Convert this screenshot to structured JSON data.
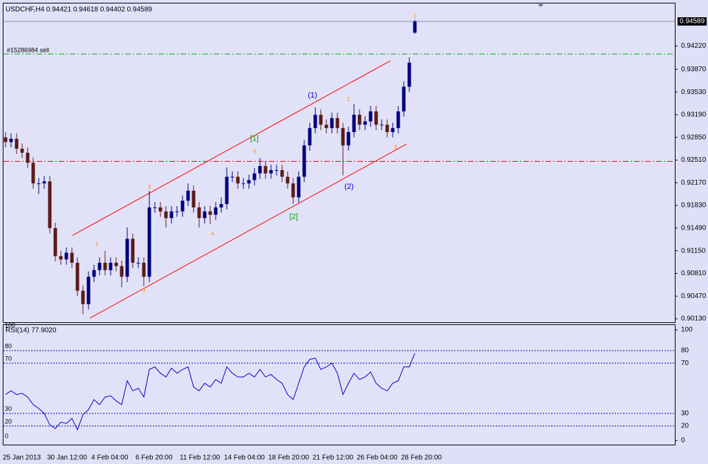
{
  "chart_data": [
    {
      "type": "candlestick",
      "title": "USDCHF,H4  0.94421 0.94618 0.94402 0.94589",
      "categories": [
        "25 Jan 2013",
        null,
        null,
        null,
        null,
        null,
        null,
        null,
        "30 Jan 12:00",
        null,
        null,
        null,
        null,
        null,
        null,
        null,
        "4 Feb 04:00",
        null,
        null,
        null,
        null,
        null,
        null,
        null,
        "6 Feb 20:00",
        null,
        null,
        null,
        null,
        null,
        null,
        null,
        "11 Feb 12:00",
        null,
        null,
        null,
        null,
        null,
        null,
        null,
        "14 Feb 04:00",
        null,
        null,
        null,
        null,
        null,
        null,
        null,
        "18 Feb 20:00",
        null,
        null,
        null,
        null,
        null,
        null,
        null,
        "21 Feb 12:00",
        null,
        null,
        null,
        null,
        null,
        null,
        null,
        "26 Feb 04:00",
        null,
        null,
        null,
        null,
        null,
        null,
        null,
        "28 Feb 20:00",
        null,
        null
      ],
      "open": [
        0.9285,
        0.9278,
        0.9283,
        0.9268,
        0.9262,
        0.9247,
        0.9216,
        0.9216,
        0.9219,
        0.9149,
        0.9107,
        0.9102,
        0.9112,
        0.9097,
        0.9055,
        0.9035,
        0.9076,
        0.9086,
        0.9097,
        0.9086,
        0.9097,
        0.9092,
        0.9076,
        0.9133,
        0.9097,
        0.9097,
        0.9076,
        0.918,
        0.918,
        0.9174,
        0.9164,
        0.9174,
        0.9174,
        0.919,
        0.9205,
        0.918,
        0.9164,
        0.9174,
        0.9169,
        0.918,
        0.9185,
        0.9226,
        0.9226,
        0.9216,
        0.9216,
        0.9221,
        0.9231,
        0.9242,
        0.9231,
        0.9236,
        0.9236,
        0.9226,
        0.9216,
        0.9195,
        0.9226,
        0.9273,
        0.9299,
        0.9319,
        0.9304,
        0.9299,
        0.9314,
        0.9299,
        0.9273,
        0.9293,
        0.9319,
        0.9304,
        0.9309,
        0.9324,
        0.9304,
        0.9304,
        0.9293,
        0.9299,
        0.9324,
        0.9361,
        0.94421
      ],
      "high": [
        0.9293,
        0.9291,
        0.9291,
        0.9276,
        0.927,
        0.9255,
        0.9224,
        0.9227,
        0.9227,
        0.9157,
        0.9115,
        0.912,
        0.912,
        0.9105,
        0.9063,
        0.9084,
        0.9094,
        0.9105,
        0.9115,
        0.9105,
        0.9105,
        0.91,
        0.915,
        0.9141,
        0.9105,
        0.9105,
        0.9205,
        0.9188,
        0.9188,
        0.9182,
        0.9182,
        0.9182,
        0.9198,
        0.9216,
        0.9213,
        0.9188,
        0.9182,
        0.9182,
        0.9188,
        0.9195,
        0.924,
        0.9234,
        0.9234,
        0.9224,
        0.9229,
        0.9239,
        0.9254,
        0.925,
        0.9244,
        0.9244,
        0.9244,
        0.9234,
        0.9224,
        0.9234,
        0.9281,
        0.9307,
        0.933,
        0.9327,
        0.9312,
        0.9322,
        0.9322,
        0.9307,
        0.9301,
        0.9335,
        0.9327,
        0.9317,
        0.9332,
        0.9332,
        0.9312,
        0.9312,
        0.9307,
        0.9332,
        0.9369,
        0.9405,
        0.94618
      ],
      "low": [
        0.927,
        0.927,
        0.926,
        0.9254,
        0.9239,
        0.9208,
        0.92,
        0.9208,
        0.9141,
        0.9099,
        0.9094,
        0.9094,
        0.9089,
        0.9047,
        0.902,
        0.9027,
        0.9068,
        0.9078,
        0.9078,
        0.9078,
        0.9084,
        0.906,
        0.9068,
        0.9089,
        0.9089,
        0.9062,
        0.9068,
        0.9172,
        0.9166,
        0.915,
        0.9156,
        0.9166,
        0.9166,
        0.9182,
        0.9172,
        0.915,
        0.9156,
        0.9155,
        0.9161,
        0.9172,
        0.9177,
        0.9218,
        0.9208,
        0.9208,
        0.9208,
        0.9213,
        0.9223,
        0.9223,
        0.9223,
        0.9228,
        0.9218,
        0.9208,
        0.9185,
        0.9187,
        0.9218,
        0.9265,
        0.9291,
        0.9296,
        0.9291,
        0.9291,
        0.9291,
        0.9228,
        0.9265,
        0.9285,
        0.9296,
        0.9296,
        0.9301,
        0.9296,
        0.9296,
        0.9285,
        0.9285,
        0.9291,
        0.9316,
        0.9353,
        0.94402
      ],
      "close": [
        0.9278,
        0.9283,
        0.9268,
        0.9262,
        0.9247,
        0.9216,
        0.9216,
        0.9219,
        0.9149,
        0.9107,
        0.9102,
        0.9112,
        0.9097,
        0.9055,
        0.9035,
        0.9076,
        0.9086,
        0.9097,
        0.9086,
        0.9097,
        0.9092,
        0.9076,
        0.9133,
        0.9097,
        0.9097,
        0.9076,
        0.918,
        0.918,
        0.9174,
        0.9164,
        0.9174,
        0.9174,
        0.919,
        0.9205,
        0.918,
        0.9164,
        0.9174,
        0.9169,
        0.918,
        0.9185,
        0.9226,
        0.9226,
        0.9216,
        0.9216,
        0.9221,
        0.9231,
        0.9242,
        0.9231,
        0.9236,
        0.9236,
        0.9226,
        0.9216,
        0.9195,
        0.9226,
        0.9273,
        0.9299,
        0.9319,
        0.9304,
        0.9299,
        0.9314,
        0.9299,
        0.9273,
        0.9293,
        0.9319,
        0.9304,
        0.9309,
        0.9324,
        0.9304,
        0.9304,
        0.9293,
        0.9299,
        0.9324,
        0.9361,
        0.9397,
        0.94589
      ],
      "up_color": "#000080",
      "down_color": "#5a1a1a",
      "ylim": [
        0.90078,
        0.94869
      ],
      "yticks": [
        {
          "value": 0.9422,
          "label": "0.94220"
        },
        {
          "value": 0.9387,
          "label": "0.93870"
        },
        {
          "value": 0.9353,
          "label": "0.93530"
        },
        {
          "value": 0.9319,
          "label": "0.93190"
        },
        {
          "value": 0.9285,
          "label": "0.92850"
        },
        {
          "value": 0.9251,
          "label": "0.92510"
        },
        {
          "value": 0.9217,
          "label": "0.92170"
        },
        {
          "value": 0.9183,
          "label": "0.91830"
        },
        {
          "value": 0.9149,
          "label": "0.91490"
        },
        {
          "value": 0.9115,
          "label": "0.91150"
        },
        {
          "value": 0.9081,
          "label": "0.90810"
        },
        {
          "value": 0.9047,
          "label": "0.90470"
        },
        {
          "value": 0.9013,
          "label": "0.90130"
        }
      ],
      "current_price": 0.94589,
      "hlines": [
        {
          "value": 0.941,
          "color": "#00b000",
          "label": "#15286984 sell"
        },
        {
          "value": 0.9249,
          "color": "#e00000"
        }
      ],
      "channel": [
        {
          "x": [
            12.1,
            69.6
          ],
          "y": [
            0.9138,
            0.94
          ],
          "color": "#ff0000"
        },
        {
          "x": [
            15.25,
            72.5
          ],
          "y": [
            0.9014,
            0.9275
          ],
          "color": "#ff0000"
        }
      ],
      "annotations": [
        {
          "text": "(1)",
          "x": 55.5,
          "y": 0.9348,
          "color": "#0000cc"
        },
        {
          "text": "(2)",
          "x": 62.1,
          "y": 0.9211,
          "color": "#0000cc"
        },
        {
          "text": "[1]",
          "x": 45,
          "y": 0.9283,
          "color": "#00a000"
        },
        {
          "text": "[2]",
          "x": 52.1,
          "y": 0.9166,
          "color": "#00a000"
        },
        {
          "text": "1",
          "x": 16.5,
          "y": 0.9125,
          "color": "#ff8c00"
        },
        {
          "text": "3",
          "x": 26,
          "y": 0.921,
          "color": "#ff8c00"
        },
        {
          "text": "5",
          "x": 45.1,
          "y": 0.9263,
          "color": "#ff8c00"
        },
        {
          "text": "4",
          "x": 37.4,
          "y": 0.914,
          "color": "#ff8c00"
        },
        {
          "text": "1",
          "x": 62,
          "y": 0.9342,
          "color": "#ff8c00"
        },
        {
          "text": "1",
          "x": 74,
          "y": 0.9467,
          "color": "#ff8c00"
        },
        {
          "text": "3",
          "x": 25,
          "y": 0.9055,
          "color": "#ff8c00"
        },
        {
          "text": "3",
          "x": 70.5,
          "y": 0.927,
          "color": "#ff8c00"
        }
      ]
    },
    {
      "type": "line",
      "title": "RSI(14) 77.9020",
      "values": [
        45,
        48,
        45,
        46,
        43,
        37,
        34,
        30,
        21,
        18,
        23,
        22,
        26,
        17,
        29,
        33,
        41,
        37,
        43,
        44,
        40,
        37,
        56,
        48,
        50,
        43,
        65,
        67,
        62,
        59,
        66,
        62,
        65,
        67,
        51,
        48,
        54,
        51,
        57,
        54,
        67,
        62,
        59,
        59,
        62,
        59,
        65,
        59,
        61,
        57,
        54,
        45,
        41,
        54,
        67,
        73,
        74,
        65,
        67,
        70,
        62,
        45,
        54,
        62,
        57,
        59,
        63,
        54,
        50,
        48,
        54,
        56,
        67,
        67,
        77.9
      ],
      "color": "#0000cc",
      "ylim": [
        0,
        100
      ],
      "yticks": [
        0,
        20,
        30,
        70,
        80,
        100
      ]
    }
  ]
}
